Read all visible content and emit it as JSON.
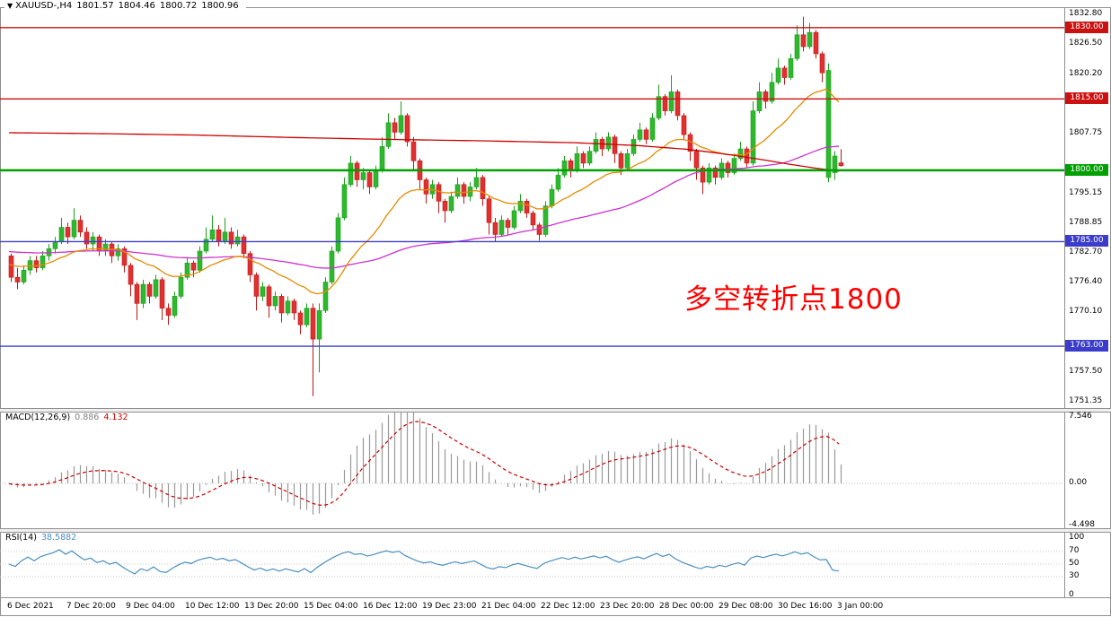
{
  "chart_data": {
    "type": "candlestick",
    "title": {
      "symbol_period": "XAUUSD-,H4",
      "open": "1801.57",
      "high": "1804.46",
      "low": "1800.72",
      "close": "1800.96"
    },
    "price_range": {
      "min": 1750.0,
      "max": 1834.3
    },
    "price_axis_labels": [
      1832.8,
      1826.5,
      1820.2,
      1807.75,
      1795.15,
      1788.85,
      1782.7,
      1776.4,
      1770.1,
      1757.5,
      1751.35
    ],
    "levels": [
      {
        "value": 1830.0,
        "label": "1830.00",
        "color": "#cc1111",
        "width": 1.4
      },
      {
        "value": 1815.0,
        "label": "1815.00",
        "color": "#cc1111",
        "width": 1.4
      },
      {
        "value": 1800.0,
        "label": "1800.00",
        "color": "#00a000",
        "width": 2.4
      },
      {
        "value": 1785.0,
        "label": "1785.00",
        "color": "#3c3ccc",
        "width": 1.4
      },
      {
        "value": 1763.0,
        "label": "1763.00",
        "color": "#3c3ccc",
        "width": 1.4
      }
    ],
    "time_labels": [
      "6 Dec 2021",
      "7 Dec 20:00",
      "9 Dec 04:00",
      "10 Dec 12:00",
      "13 Dec 20:00",
      "15 Dec 04:00",
      "16 Dec 12:00",
      "19 Dec 23:00",
      "21 Dec 04:00",
      "22 Dec 12:00",
      "23 Dec 20:00",
      "28 Dec 00:00",
      "29 Dec 08:00",
      "30 Dec 16:00",
      "3 Jan 00:00"
    ],
    "candle_colors": {
      "up": "#2eb82e",
      "up_stroke": "#1d9e1d",
      "down": "#e03030",
      "down_stroke": "#c01818"
    },
    "candles": [
      [
        1782.0,
        1782.5,
        1776.5,
        1777.5
      ],
      [
        1777.5,
        1779.5,
        1775.0,
        1776.5
      ],
      [
        1776.5,
        1780.0,
        1776.0,
        1779.0
      ],
      [
        1779.0,
        1782.0,
        1778.0,
        1781.0
      ],
      [
        1781.0,
        1782.0,
        1778.5,
        1779.5
      ],
      [
        1779.5,
        1783.0,
        1779.0,
        1782.0
      ],
      [
        1782.0,
        1784.5,
        1781.0,
        1783.5
      ],
      [
        1783.5,
        1786.0,
        1782.5,
        1785.0
      ],
      [
        1785.0,
        1790.0,
        1784.5,
        1788.0
      ],
      [
        1788.0,
        1789.0,
        1784.5,
        1786.0
      ],
      [
        1786.0,
        1792.0,
        1785.5,
        1789.5
      ],
      [
        1789.5,
        1790.5,
        1786.0,
        1787.0
      ],
      [
        1787.0,
        1788.0,
        1783.5,
        1784.5
      ],
      [
        1784.5,
        1787.0,
        1783.0,
        1786.0
      ],
      [
        1786.0,
        1786.5,
        1782.0,
        1783.0
      ],
      [
        1783.0,
        1785.5,
        1782.0,
        1784.5
      ],
      [
        1784.5,
        1785.0,
        1780.5,
        1782.0
      ],
      [
        1782.0,
        1784.5,
        1781.0,
        1783.5
      ],
      [
        1783.5,
        1784.0,
        1778.5,
        1780.0
      ],
      [
        1780.0,
        1780.5,
        1773.5,
        1776.0
      ],
      [
        1776.0,
        1776.5,
        1768.5,
        1772.0
      ],
      [
        1772.0,
        1777.0,
        1771.0,
        1776.0
      ],
      [
        1776.0,
        1776.5,
        1772.0,
        1773.5
      ],
      [
        1773.5,
        1778.0,
        1773.0,
        1777.0
      ],
      [
        1777.0,
        1777.5,
        1768.5,
        1771.0
      ],
      [
        1771.0,
        1772.0,
        1767.5,
        1769.5
      ],
      [
        1769.5,
        1774.5,
        1769.0,
        1773.5
      ],
      [
        1773.5,
        1778.5,
        1773.0,
        1777.5
      ],
      [
        1777.5,
        1781.5,
        1777.0,
        1780.5
      ],
      [
        1780.5,
        1781.0,
        1777.5,
        1779.0
      ],
      [
        1779.0,
        1784.0,
        1778.5,
        1783.0
      ],
      [
        1783.0,
        1788.0,
        1782.5,
        1785.5
      ],
      [
        1785.5,
        1790.5,
        1785.0,
        1787.5
      ],
      [
        1787.5,
        1788.5,
        1784.0,
        1785.0
      ],
      [
        1785.0,
        1790.0,
        1784.5,
        1787.0
      ],
      [
        1787.0,
        1788.0,
        1783.5,
        1784.5
      ],
      [
        1784.5,
        1787.5,
        1784.0,
        1786.0
      ],
      [
        1786.0,
        1786.5,
        1781.5,
        1782.5
      ],
      [
        1782.5,
        1783.0,
        1776.5,
        1778.0
      ],
      [
        1778.0,
        1778.5,
        1770.5,
        1773.5
      ],
      [
        1773.5,
        1776.5,
        1772.5,
        1775.5
      ],
      [
        1775.5,
        1776.0,
        1769.0,
        1771.5
      ],
      [
        1771.5,
        1774.5,
        1770.5,
        1773.5
      ],
      [
        1773.5,
        1774.0,
        1768.0,
        1770.0
      ],
      [
        1770.0,
        1773.5,
        1769.5,
        1772.5
      ],
      [
        1772.5,
        1773.0,
        1768.5,
        1770.0
      ],
      [
        1770.0,
        1770.5,
        1765.5,
        1767.5
      ],
      [
        1767.5,
        1772.0,
        1767.0,
        1771.0
      ],
      [
        1771.0,
        1772.0,
        1752.5,
        1764.5
      ],
      [
        1764.5,
        1772.0,
        1757.5,
        1770.5
      ],
      [
        1770.5,
        1777.5,
        1770.0,
        1776.5
      ],
      [
        1776.5,
        1784.0,
        1776.0,
        1783.0
      ],
      [
        1783.0,
        1791.0,
        1782.5,
        1790.0
      ],
      [
        1790.0,
        1798.5,
        1789.5,
        1797.0
      ],
      [
        1797.0,
        1803.0,
        1796.5,
        1801.5
      ],
      [
        1801.5,
        1802.0,
        1796.5,
        1798.0
      ],
      [
        1798.0,
        1800.5,
        1796.0,
        1799.5
      ],
      [
        1799.5,
        1800.0,
        1795.0,
        1796.5
      ],
      [
        1796.5,
        1801.0,
        1796.0,
        1800.0
      ],
      [
        1800.0,
        1807.0,
        1799.5,
        1805.0
      ],
      [
        1805.0,
        1812.0,
        1804.5,
        1810.0
      ],
      [
        1810.0,
        1811.0,
        1806.5,
        1808.0
      ],
      [
        1808.0,
        1814.5,
        1807.5,
        1811.5
      ],
      [
        1811.5,
        1812.0,
        1805.0,
        1806.0
      ],
      [
        1806.0,
        1807.0,
        1800.0,
        1802.0
      ],
      [
        1802.0,
        1802.5,
        1796.0,
        1798.0
      ],
      [
        1798.0,
        1798.5,
        1793.0,
        1795.0
      ],
      [
        1795.0,
        1798.0,
        1794.0,
        1797.0
      ],
      [
        1797.0,
        1797.5,
        1791.0,
        1793.5
      ],
      [
        1793.5,
        1794.0,
        1789.0,
        1791.5
      ],
      [
        1791.5,
        1795.5,
        1791.0,
        1794.5
      ],
      [
        1794.5,
        1798.5,
        1794.0,
        1797.0
      ],
      [
        1797.0,
        1797.5,
        1793.0,
        1794.5
      ],
      [
        1794.5,
        1797.5,
        1793.5,
        1796.5
      ],
      [
        1796.5,
        1800.5,
        1796.0,
        1798.5
      ],
      [
        1798.5,
        1799.0,
        1792.5,
        1794.0
      ],
      [
        1794.0,
        1794.5,
        1786.5,
        1789.0
      ],
      [
        1789.0,
        1790.0,
        1785.0,
        1786.5
      ],
      [
        1786.5,
        1790.5,
        1786.0,
        1789.5
      ],
      [
        1789.5,
        1790.0,
        1786.5,
        1788.0
      ],
      [
        1788.0,
        1792.5,
        1787.5,
        1791.5
      ],
      [
        1791.5,
        1795.0,
        1791.0,
        1793.5
      ],
      [
        1793.5,
        1794.0,
        1790.0,
        1791.0
      ],
      [
        1791.0,
        1791.5,
        1787.5,
        1788.5
      ],
      [
        1788.5,
        1789.0,
        1785.2,
        1786.5
      ],
      [
        1786.5,
        1793.5,
        1786.0,
        1792.5
      ],
      [
        1792.5,
        1797.0,
        1792.0,
        1796.0
      ],
      [
        1796.0,
        1800.5,
        1795.5,
        1799.0
      ],
      [
        1799.0,
        1803.0,
        1798.5,
        1802.0
      ],
      [
        1802.0,
        1802.5,
        1798.5,
        1800.0
      ],
      [
        1800.0,
        1805.0,
        1799.5,
        1803.5
      ],
      [
        1803.5,
        1804.0,
        1800.5,
        1801.5
      ],
      [
        1801.5,
        1805.0,
        1801.0,
        1804.0
      ],
      [
        1804.0,
        1808.0,
        1803.5,
        1806.5
      ],
      [
        1806.5,
        1807.0,
        1803.0,
        1804.5
      ],
      [
        1804.5,
        1808.0,
        1804.0,
        1807.0
      ],
      [
        1807.0,
        1807.5,
        1801.5,
        1803.5
      ],
      [
        1803.5,
        1804.0,
        1799.0,
        1800.5
      ],
      [
        1800.5,
        1804.5,
        1800.0,
        1803.5
      ],
      [
        1803.5,
        1807.5,
        1803.0,
        1806.5
      ],
      [
        1806.5,
        1810.0,
        1806.0,
        1808.5
      ],
      [
        1808.5,
        1809.0,
        1805.5,
        1806.5
      ],
      [
        1806.5,
        1812.0,
        1806.0,
        1811.0
      ],
      [
        1811.0,
        1818.0,
        1810.5,
        1815.5
      ],
      [
        1815.5,
        1816.0,
        1811.5,
        1812.5
      ],
      [
        1812.5,
        1820.0,
        1812.0,
        1816.5
      ],
      [
        1816.5,
        1817.0,
        1810.5,
        1811.5
      ],
      [
        1811.5,
        1812.0,
        1806.5,
        1807.5
      ],
      [
        1807.5,
        1808.0,
        1802.0,
        1804.0
      ],
      [
        1804.0,
        1804.5,
        1798.0,
        1800.5
      ],
      [
        1800.5,
        1801.0,
        1795.0,
        1797.5
      ],
      [
        1797.5,
        1801.5,
        1797.0,
        1800.5
      ],
      [
        1800.5,
        1801.0,
        1797.0,
        1798.5
      ],
      [
        1798.5,
        1802.5,
        1798.0,
        1801.5
      ],
      [
        1801.5,
        1802.0,
        1798.5,
        1799.5
      ],
      [
        1799.5,
        1803.5,
        1799.0,
        1802.5
      ],
      [
        1802.5,
        1806.0,
        1802.0,
        1804.5
      ],
      [
        1804.5,
        1805.0,
        1800.5,
        1801.5
      ],
      [
        1801.5,
        1814.5,
        1801.0,
        1812.5
      ],
      [
        1812.5,
        1818.5,
        1812.0,
        1816.5
      ],
      [
        1816.5,
        1817.0,
        1813.0,
        1814.5
      ],
      [
        1814.5,
        1820.5,
        1814.0,
        1818.5
      ],
      [
        1818.5,
        1823.5,
        1818.0,
        1821.5
      ],
      [
        1821.5,
        1822.0,
        1818.0,
        1819.5
      ],
      [
        1819.5,
        1824.5,
        1819.0,
        1823.5
      ],
      [
        1823.5,
        1830.5,
        1823.0,
        1828.5
      ],
      [
        1828.5,
        1832.3,
        1825.0,
        1826.0
      ],
      [
        1826.0,
        1831.0,
        1825.5,
        1829.0
      ],
      [
        1829.0,
        1829.5,
        1823.5,
        1824.5
      ],
      [
        1824.5,
        1825.0,
        1818.5,
        1820.5
      ],
      [
        1798.5,
        1822.5,
        1797.5,
        1821.0
      ],
      [
        1799.5,
        1804.0,
        1798.0,
        1803.0
      ],
      [
        1801.57,
        1804.46,
        1800.72,
        1800.96
      ]
    ],
    "moving_averages": {
      "fast": {
        "color": "#e68a00",
        "period": 20,
        "seed": 1780.5
      },
      "medium": {
        "color": "#cc33cc",
        "period": 60,
        "seed": 1783
      },
      "slow": {
        "color": "#cc0000",
        "anchors": [
          [
            0,
            1807.9
          ],
          [
            15,
            1807.7
          ],
          [
            30,
            1807.4
          ],
          [
            45,
            1806.9
          ],
          [
            60,
            1806.5
          ],
          [
            75,
            1806.2
          ],
          [
            90,
            1805.8
          ],
          [
            100,
            1805.2
          ],
          [
            108,
            1804.4
          ],
          [
            114,
            1803.4
          ],
          [
            120,
            1802.2
          ],
          [
            124,
            1801.3
          ],
          [
            128,
            1800.5
          ],
          [
            132,
            1799.8
          ]
        ]
      }
    },
    "macd": {
      "label": "MACD(12,26,9)",
      "value": "0.886",
      "signal_value": "4.132",
      "fast": 12,
      "slow": 26,
      "signal": 9,
      "range": {
        "min": -4.498,
        "max": 7.546
      },
      "axis_labels": [
        "7.546",
        "0.00",
        "-4.498"
      ],
      "histogram_color": "#999999",
      "signal_color": "#cc0000"
    },
    "rsi": {
      "label": "RSI(14)",
      "value": "38.5882",
      "period": 14,
      "axis_labels": [
        100,
        70,
        50,
        30,
        0
      ],
      "guides": [
        70,
        50,
        30
      ],
      "color": "#4a8fc0"
    },
    "annotation": {
      "text": "多空转折点1800",
      "color": "#ff0000"
    }
  }
}
